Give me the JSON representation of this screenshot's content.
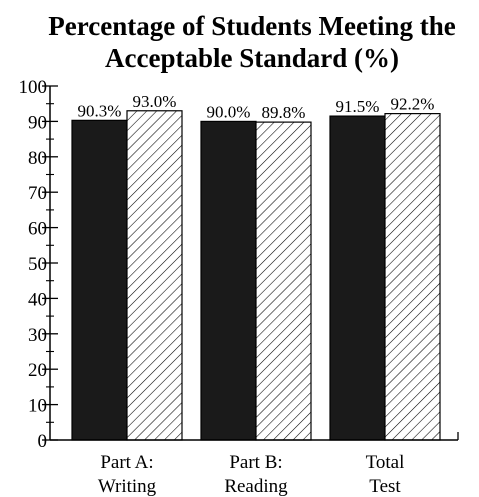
{
  "chart_data": {
    "type": "bar",
    "title_lines": [
      "Percentage of Students Meeting the",
      "Acceptable Standard (%)"
    ],
    "categories": [
      [
        "Part A:",
        "Writing"
      ],
      [
        "Part B:",
        "Reading"
      ],
      [
        "Total",
        "Test"
      ]
    ],
    "series": [
      {
        "values": [
          90.3,
          90.0,
          91.5
        ],
        "labels": [
          "90.3%",
          "90.0%",
          "91.5%"
        ],
        "fill": "solid",
        "color": "#1a1a1a"
      },
      {
        "values": [
          93.0,
          89.8,
          92.2
        ],
        "labels": [
          "93.0%",
          "89.8%",
          "92.2%"
        ],
        "fill": "hatched",
        "color": "#ffffff"
      }
    ],
    "ylim": [
      0,
      100
    ],
    "yticks": [
      0,
      10,
      20,
      30,
      40,
      50,
      60,
      70,
      80,
      90,
      100
    ],
    "grid": false,
    "xlabel": "",
    "ylabel": ""
  }
}
